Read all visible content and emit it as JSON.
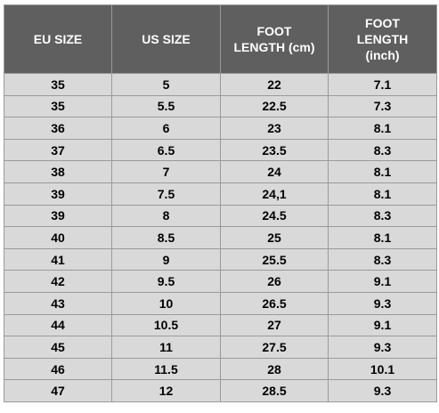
{
  "table": {
    "headers": [
      "EU SIZE",
      "US SIZE",
      "FOOT\nLENGTH (cm)",
      "FOOT\nLENGTH\n(inch)"
    ],
    "rows": [
      [
        "35",
        "5",
        "22",
        "7.1"
      ],
      [
        "35",
        "5.5",
        "22.5",
        "7.3"
      ],
      [
        "36",
        "6",
        "23",
        "8.1"
      ],
      [
        "37",
        "6.5",
        "23.5",
        "8.3"
      ],
      [
        "38",
        "7",
        "24",
        "8.1"
      ],
      [
        "39",
        "7.5",
        "24,1",
        "8.1"
      ],
      [
        "39",
        "8",
        "24.5",
        "8.3"
      ],
      [
        "40",
        "8.5",
        "25",
        "8.1"
      ],
      [
        "41",
        "9",
        "25.5",
        "8.3"
      ],
      [
        "42",
        "9.5",
        "26",
        "9.1"
      ],
      [
        "43",
        "10",
        "26.5",
        "9.3"
      ],
      [
        "44",
        "10.5",
        "27",
        "9.1"
      ],
      [
        "45",
        "11",
        "27.5",
        "9.3"
      ],
      [
        "46",
        "11.5",
        "28",
        "10.1"
      ],
      [
        "47",
        "12",
        "28.5",
        "9.3"
      ]
    ]
  },
  "colors": {
    "header_bg": "#5f5f5f",
    "header_text": "#ffffff",
    "cell_bg": "#d9d9d9",
    "cell_text": "#000000",
    "border": "#9a9a9a"
  }
}
